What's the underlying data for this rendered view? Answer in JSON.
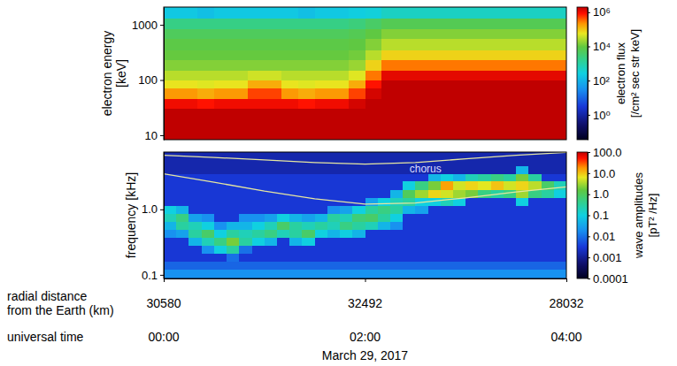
{
  "chart_data": [
    {
      "type": "heatmap",
      "ylabel": [
        "electron energy",
        "[keV]"
      ],
      "log": "y",
      "tick_labels": "y",
      "xlim": [
        0,
        4
      ],
      "ylim": [
        8.3,
        2100
      ],
      "yticks": [
        10,
        100,
        1000
      ],
      "x_edges": [
        0,
        0.1667,
        0.3333,
        0.5,
        0.6667,
        0.8333,
        1,
        1.1667,
        1.3333,
        1.5,
        1.6667,
        1.8333,
        2,
        2.1667,
        2.3333,
        2.5,
        2.6667,
        2.8333,
        3,
        3.1667,
        3.3333,
        3.5,
        3.6667,
        3.8333,
        4
      ],
      "y_edges": [
        8.3,
        13,
        20,
        30,
        45,
        70,
        100,
        150,
        230,
        350,
        550,
        850,
        1300,
        2100
      ],
      "cells": [
        [
          3000000.0,
          3000000.0,
          2000000.0,
          1000000.0,
          200000.0,
          60000.0,
          30000.0,
          15000.0,
          10000.0,
          8000.0,
          5000.0,
          2000.0,
          200
        ],
        [
          3000000.0,
          3000000.0,
          2000000.0,
          1000000.0,
          200000.0,
          60000.0,
          30000.0,
          15000.0,
          10000.0,
          8000.0,
          5000.0,
          2000.0,
          200
        ],
        [
          2000000.0,
          3000000.0,
          2000000.0,
          800000.0,
          150000.0,
          50000.0,
          30000.0,
          15000.0,
          10000.0,
          8000.0,
          5000.0,
          2000.0,
          150
        ],
        [
          3000000.0,
          3000000.0,
          2000000.0,
          1000000.0,
          200000.0,
          60000.0,
          30000.0,
          15000.0,
          10000.0,
          8000.0,
          5000.0,
          2000.0,
          200
        ],
        [
          3000000.0,
          3000000.0,
          2000000.0,
          1000000.0,
          200000.0,
          60000.0,
          30000.0,
          15000.0,
          10000.0,
          8000.0,
          5000.0,
          2000.0,
          200
        ],
        [
          3000000.0,
          3000000.0,
          2000000.0,
          1000000.0,
          500000.0,
          150000.0,
          40000.0,
          15000.0,
          10000.0,
          8000.0,
          5000.0,
          2000.0,
          200
        ],
        [
          3000000.0,
          3000000.0,
          2000000.0,
          1000000.0,
          500000.0,
          150000.0,
          40000.0,
          15000.0,
          10000.0,
          8000.0,
          5000.0,
          2000.0,
          200
        ],
        [
          3000000.0,
          3000000.0,
          2000000.0,
          1000000.0,
          200000.0,
          60000.0,
          30000.0,
          15000.0,
          10000.0,
          8000.0,
          5000.0,
          2000.0,
          200
        ],
        [
          2000000.0,
          3000000.0,
          2000000.0,
          800000.0,
          150000.0,
          50000.0,
          30000.0,
          15000.0,
          10000.0,
          8000.0,
          5000.0,
          2000.0,
          150
        ],
        [
          3000000.0,
          3000000.0,
          2000000.0,
          1000000.0,
          200000.0,
          60000.0,
          30000.0,
          15000.0,
          10000.0,
          8000.0,
          5000.0,
          2000.0,
          200
        ],
        [
          3000000.0,
          3000000.0,
          2000000.0,
          1000000.0,
          200000.0,
          60000.0,
          30000.0,
          15000.0,
          10000.0,
          8000.0,
          5000.0,
          2000.0,
          200
        ],
        [
          3000000.0,
          3000000.0,
          2000000.0,
          1500000.0,
          500000.0,
          150000.0,
          50000.0,
          20000.0,
          12000.0,
          9000.0,
          6000.0,
          2500.0,
          250
        ],
        [
          3000000.0,
          3000000.0,
          3000000.0,
          2000000.0,
          1500000.0,
          800000.0,
          300000.0,
          80000.0,
          30000.0,
          15000.0,
          9000.0,
          4000.0,
          300
        ],
        [
          3000000.0,
          3000000.0,
          3000000.0,
          3000000.0,
          3000000.0,
          2000000.0,
          1200000.0,
          300000.0,
          80000.0,
          30000.0,
          15000.0,
          6000.0,
          500
        ],
        [
          3000000.0,
          3000000.0,
          3000000.0,
          3000000.0,
          3000000.0,
          2000000.0,
          1200000.0,
          300000.0,
          80000.0,
          30000.0,
          15000.0,
          6000.0,
          500
        ],
        [
          3000000.0,
          3000000.0,
          3000000.0,
          3000000.0,
          3000000.0,
          2000000.0,
          1200000.0,
          300000.0,
          80000.0,
          30000.0,
          15000.0,
          6000.0,
          500
        ],
        [
          3000000.0,
          3000000.0,
          3000000.0,
          3000000.0,
          3000000.0,
          2000000.0,
          1200000.0,
          300000.0,
          80000.0,
          30000.0,
          15000.0,
          6000.0,
          500
        ],
        [
          3000000.0,
          3000000.0,
          3000000.0,
          3000000.0,
          3000000.0,
          2000000.0,
          1200000.0,
          300000.0,
          80000.0,
          30000.0,
          15000.0,
          6000.0,
          500
        ],
        [
          3000000.0,
          3000000.0,
          3000000.0,
          3000000.0,
          3000000.0,
          2000000.0,
          1200000.0,
          300000.0,
          80000.0,
          30000.0,
          15000.0,
          6000.0,
          500
        ],
        [
          3000000.0,
          3000000.0,
          3000000.0,
          3000000.0,
          3000000.0,
          2000000.0,
          1200000.0,
          300000.0,
          80000.0,
          30000.0,
          15000.0,
          6000.0,
          500
        ],
        [
          3000000.0,
          3000000.0,
          3000000.0,
          3000000.0,
          3000000.0,
          2000000.0,
          1200000.0,
          300000.0,
          80000.0,
          30000.0,
          15000.0,
          6000.0,
          500
        ],
        [
          3000000.0,
          3000000.0,
          3000000.0,
          3000000.0,
          3000000.0,
          2000000.0,
          1200000.0,
          300000.0,
          80000.0,
          30000.0,
          15000.0,
          6000.0,
          500
        ],
        [
          3000000.0,
          3000000.0,
          3000000.0,
          3000000.0,
          3000000.0,
          2000000.0,
          1200000.0,
          300000.0,
          80000.0,
          30000.0,
          15000.0,
          6000.0,
          500
        ],
        [
          3000000.0,
          3000000.0,
          3000000.0,
          3000000.0,
          3000000.0,
          2000000.0,
          1200000.0,
          300000.0,
          80000.0,
          30000.0,
          15000.0,
          6000.0,
          500
        ]
      ],
      "colorbar": {
        "label": [
          "electron flux",
          "[/cm² sec str keV]"
        ],
        "log": true,
        "range": [
          0.035,
          2000000
        ],
        "ticks": [
          {
            "value": 1,
            "label": "10⁰"
          },
          {
            "value": 100,
            "label": "10²"
          },
          {
            "value": 10000,
            "label": "10⁴"
          },
          {
            "value": 1000000,
            "label": "10⁶"
          }
        ]
      }
    },
    {
      "type": "heatmap",
      "ylabel": "frequency [kHz]",
      "log": "y",
      "xlim": [
        0,
        4
      ],
      "ylim": [
        0.088,
        7.5
      ],
      "yticks": [
        0.1,
        {
          "value": 1,
          "label": "1.0"
        }
      ],
      "xticks": [
        {
          "value": 0,
          "label": "00:00"
        },
        {
          "value": 2,
          "label": "02:00"
        },
        {
          "value": 4,
          "label": "04:00"
        }
      ],
      "xlabel": "universal time",
      "radial_distance": {
        "label": [
          "radial distance",
          "from the Earth (km)"
        ],
        "values": [
          30580,
          32492,
          28032
        ]
      },
      "date": "March 29, 2017",
      "x_edges": [
        0,
        0.125,
        0.25,
        0.375,
        0.5,
        0.625,
        0.75,
        0.875,
        1,
        1.125,
        1.25,
        1.375,
        1.5,
        1.625,
        1.75,
        1.875,
        2,
        2.125,
        2.25,
        2.375,
        2.5,
        2.625,
        2.75,
        2.875,
        3,
        3.125,
        3.25,
        3.375,
        3.5,
        3.625,
        3.75,
        3.875,
        4
      ],
      "y_edges": [
        0.088,
        0.12,
        0.16,
        0.21,
        0.28,
        0.37,
        0.49,
        0.65,
        0.86,
        1.14,
        1.5,
        2.0,
        2.65,
        3.5,
        4.6,
        7.5
      ],
      "cells": [
        [
          0.02,
          0.008,
          0.003,
          0.003,
          0.003,
          0.02,
          0.05,
          0.2,
          0.1,
          0.003,
          0.003,
          0.003,
          0.003,
          0.0015,
          0.0015
        ],
        [
          0.02,
          0.008,
          0.003,
          0.003,
          0.003,
          0.03,
          0.3,
          0.5,
          0.05,
          0.003,
          0.003,
          0.003,
          0.003,
          0.0015,
          0.0015
        ],
        [
          0.02,
          0.008,
          0.003,
          0.003,
          0.05,
          0.3,
          0.2,
          0.03,
          0.003,
          0.003,
          0.003,
          0.003,
          0.003,
          0.0015,
          0.0015
        ],
        [
          0.02,
          0.008,
          0.003,
          0.02,
          0.2,
          0.8,
          0.1,
          0.02,
          0.003,
          0.003,
          0.003,
          0.003,
          0.003,
          0.0015,
          0.0015
        ],
        [
          0.02,
          0.008,
          0.003,
          0.1,
          0.5,
          0.1,
          0.02,
          0.003,
          0.003,
          0.003,
          0.003,
          0.003,
          0.003,
          0.0015,
          0.0015
        ],
        [
          0.02,
          0.008,
          0.01,
          0.3,
          2,
          0.3,
          0.05,
          0.003,
          0.003,
          0.003,
          0.003,
          0.003,
          0.003,
          0.0015,
          0.0015
        ],
        [
          0.02,
          0.008,
          0.003,
          0.01,
          0.3,
          0.2,
          0.05,
          0.02,
          0.003,
          0.003,
          0.003,
          0.003,
          0.003,
          0.0015,
          0.0015
        ],
        [
          0.02,
          0.008,
          0.003,
          0.003,
          0.1,
          0.3,
          0.1,
          0.02,
          0.003,
          0.003,
          0.003,
          0.003,
          0.003,
          0.0015,
          0.0015
        ],
        [
          0.02,
          0.008,
          0.003,
          0.003,
          0.05,
          0.5,
          0.2,
          0.03,
          0.003,
          0.003,
          0.003,
          0.003,
          0.003,
          0.0015,
          0.0015
        ],
        [
          0.02,
          0.008,
          0.003,
          0.003,
          0.003,
          0.2,
          0.8,
          0.1,
          0.003,
          0.003,
          0.003,
          0.003,
          0.003,
          0.0015,
          0.0015
        ],
        [
          0.02,
          0.008,
          0.003,
          0.003,
          0.05,
          0.3,
          0.3,
          0.05,
          0.003,
          0.003,
          0.003,
          0.003,
          0.003,
          0.0015,
          0.0015
        ],
        [
          0.02,
          0.008,
          0.003,
          0.003,
          0.1,
          0.8,
          0.2,
          0.03,
          0.003,
          0.003,
          0.003,
          0.003,
          0.003,
          0.0015,
          0.0015
        ],
        [
          0.02,
          0.008,
          0.003,
          0.003,
          0.003,
          0.1,
          0.3,
          0.05,
          0.003,
          0.003,
          0.003,
          0.003,
          0.003,
          0.0015,
          0.0015
        ],
        [
          0.02,
          0.008,
          0.003,
          0.003,
          0.003,
          0.05,
          0.2,
          0.3,
          0.02,
          0.003,
          0.003,
          0.003,
          0.003,
          0.0015,
          0.0015
        ],
        [
          0.02,
          0.008,
          0.003,
          0.003,
          0.003,
          0.1,
          0.5,
          0.2,
          0.03,
          0.003,
          0.003,
          0.003,
          0.003,
          0.0015,
          0.0015
        ],
        [
          0.02,
          0.008,
          0.003,
          0.003,
          0.003,
          0.05,
          0.3,
          0.6,
          0.1,
          0.003,
          0.003,
          0.003,
          0.003,
          0.0015,
          0.0015
        ],
        [
          0.02,
          0.008,
          0.003,
          0.003,
          0.003,
          0.003,
          0.2,
          0.8,
          0.3,
          0.03,
          0.003,
          0.003,
          0.003,
          0.0015,
          0.0015
        ],
        [
          0.02,
          0.008,
          0.003,
          0.003,
          0.003,
          0.003,
          0.05,
          0.3,
          0.5,
          0.1,
          0.003,
          0.003,
          0.003,
          0.0015,
          0.0015
        ],
        [
          0.02,
          0.008,
          0.003,
          0.003,
          0.003,
          0.003,
          0.02,
          0.1,
          0.3,
          0.2,
          0.05,
          0.003,
          0.003,
          0.0015,
          0.0015
        ],
        [
          0.02,
          0.008,
          0.003,
          0.003,
          0.003,
          0.003,
          0.003,
          0.003,
          0.05,
          0.3,
          1,
          0.1,
          0.003,
          0.0015,
          0.0015
        ],
        [
          0.02,
          0.008,
          0.003,
          0.003,
          0.003,
          0.003,
          0.003,
          0.003,
          0.03,
          0.1,
          3,
          0.5,
          0.003,
          0.0015,
          0.0015
        ],
        [
          0.02,
          0.008,
          0.003,
          0.003,
          0.003,
          0.003,
          0.003,
          0.003,
          0.003,
          0.1,
          8,
          2,
          0.05,
          0.0015,
          0.0015
        ],
        [
          0.02,
          0.008,
          0.003,
          0.003,
          0.003,
          0.003,
          0.003,
          0.003,
          0.003,
          0.2,
          5,
          15,
          0.1,
          0.0015,
          0.0015
        ],
        [
          0.02,
          0.008,
          0.003,
          0.003,
          0.003,
          0.003,
          0.003,
          0.003,
          0.003,
          0.1,
          3,
          5,
          0.05,
          0.0015,
          0.0015
        ],
        [
          0.02,
          0.008,
          0.003,
          0.003,
          0.003,
          0.003,
          0.003,
          0.003,
          0.003,
          0.003,
          2,
          8,
          0.2,
          0.0015,
          0.0015
        ],
        [
          0.02,
          0.008,
          0.003,
          0.003,
          0.003,
          0.003,
          0.003,
          0.003,
          0.003,
          0.003,
          0.5,
          6,
          0.3,
          0.0015,
          0.0015
        ],
        [
          0.02,
          0.008,
          0.003,
          0.003,
          0.003,
          0.003,
          0.003,
          0.003,
          0.003,
          0.003,
          0.3,
          10,
          0.5,
          0.0015,
          0.0015
        ],
        [
          0.02,
          0.008,
          0.003,
          0.003,
          0.003,
          0.003,
          0.003,
          0.003,
          0.003,
          0.003,
          0.5,
          5,
          0.3,
          0.0015,
          0.0015
        ],
        [
          0.02,
          0.008,
          0.003,
          0.003,
          0.003,
          0.003,
          0.003,
          0.003,
          0.003,
          0.1,
          3,
          8,
          2,
          0.05,
          0.0015
        ],
        [
          0.02,
          0.008,
          0.003,
          0.003,
          0.003,
          0.003,
          0.003,
          0.003,
          0.003,
          0.003,
          0.5,
          4,
          0.3,
          0.0015,
          0.0015
        ],
        [
          0.02,
          0.008,
          0.003,
          0.003,
          0.003,
          0.003,
          0.003,
          0.003,
          0.003,
          0.003,
          0.3,
          0.8,
          0.003,
          0.0015,
          0.0015
        ],
        [
          0.02,
          0.008,
          0.003,
          0.003,
          0.003,
          0.003,
          0.003,
          0.003,
          0.003,
          0.003,
          0.1,
          0.2,
          0.003,
          0.0015,
          0.0015
        ]
      ],
      "series": [
        {
          "type": "line",
          "color": "#e6e6a0",
          "x": [
            0,
            0.5,
            1,
            1.5,
            2,
            2.5,
            3,
            3.5,
            4
          ],
          "values": [
            6.7,
            6.2,
            5.7,
            5.2,
            4.9,
            5.2,
            5.9,
            6.7,
            7.4
          ]
        },
        {
          "type": "line",
          "color": "#e6e6a0",
          "x": [
            0,
            0.5,
            1,
            1.5,
            2,
            2.5,
            3,
            3.5,
            4
          ],
          "values": [
            3.5,
            2.6,
            1.9,
            1.45,
            1.2,
            1.25,
            1.5,
            1.85,
            2.2
          ]
        }
      ],
      "annotations": [
        {
          "text": "chorus",
          "x": 2.6,
          "y": 3.7
        }
      ],
      "colorbar": {
        "label": [
          "wave amplitudes",
          "[pT² /Hz]"
        ],
        "log": true,
        "range": [
          0.0001,
          100
        ],
        "ticks": [
          0.0001,
          0.001,
          0.01,
          0.1,
          {
            "value": 1,
            "label": "1.0"
          },
          {
            "value": 10,
            "label": "10.0"
          },
          {
            "value": 100,
            "label": "100.0"
          }
        ]
      }
    }
  ]
}
